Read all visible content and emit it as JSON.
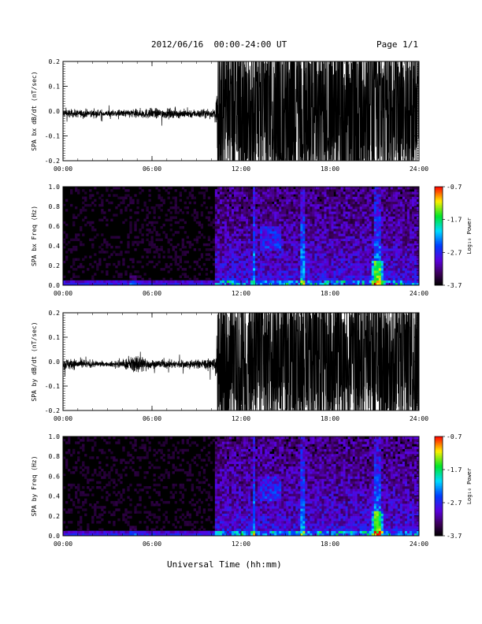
{
  "header": {
    "title": "2012/06/16  00:00-24:00 UT",
    "page": "Page 1/1"
  },
  "footer": {
    "xlabel": "Universal Time (hh:mm)"
  },
  "colorbar": {
    "ticks": [
      "-0.7",
      "-1.7",
      "-2.7",
      "-3.7"
    ],
    "label": "Log₁₀ Power"
  },
  "chart_data": [
    {
      "type": "line",
      "ylabel": "SPA bx dB/dt (nT/sec)",
      "xlabel": "",
      "xlim": [
        0,
        24
      ],
      "ylim": [
        -0.2,
        0.2
      ],
      "xticks": [
        "00:00",
        "06:00",
        "12:00",
        "18:00",
        "24:00"
      ],
      "yticks": [
        "0.2",
        "0.1",
        "0.0",
        "-0.1",
        "-0.2"
      ],
      "series": [
        {
          "color": "#000000",
          "x": [
            0,
            3,
            6,
            9,
            10.2,
            10.5,
            12,
            14,
            16,
            18,
            20,
            22,
            24
          ],
          "amplitude": [
            0.02,
            0.015,
            0.025,
            0.02,
            0.02,
            0.2,
            0.2,
            0.2,
            0.2,
            0.2,
            0.2,
            0.2,
            0.2
          ]
        }
      ]
    },
    {
      "type": "heatmap",
      "ylabel": "SPA bx Freq (Hz)",
      "xlim": [
        0,
        24
      ],
      "ylim": [
        0,
        1.0
      ],
      "xticks": [
        "00:00",
        "06:00",
        "12:00",
        "18:00",
        "24:00"
      ],
      "yticks": [
        "1.0",
        "0.8",
        "0.6",
        "0.4",
        "0.2",
        "0.0"
      ],
      "zlim": [
        -3.7,
        -0.7
      ]
    },
    {
      "type": "line",
      "ylabel": "SPA by dB/dt (nT/sec)",
      "xlabel": "",
      "xlim": [
        0,
        24
      ],
      "ylim": [
        -0.2,
        0.2
      ],
      "xticks": [
        "00:00",
        "06:00",
        "12:00",
        "18:00",
        "24:00"
      ],
      "yticks": [
        "0.2",
        "0.1",
        "0.0",
        "-0.1",
        "-0.2"
      ],
      "series": [
        {
          "color": "#000000",
          "x": [
            0,
            3,
            4.5,
            5,
            6,
            9,
            10.2,
            10.5,
            12,
            14,
            16,
            18,
            20,
            22,
            24
          ],
          "amplitude": [
            0.03,
            0.01,
            0.03,
            0.05,
            0.02,
            0.02,
            0.03,
            0.2,
            0.2,
            0.2,
            0.2,
            0.2,
            0.2,
            0.2,
            0.2
          ]
        }
      ]
    },
    {
      "type": "heatmap",
      "ylabel": "SPA by Freq (Hz)",
      "xlim": [
        0,
        24
      ],
      "ylim": [
        0,
        1.0
      ],
      "xticks": [
        "00:00",
        "06:00",
        "12:00",
        "18:00",
        "24:00"
      ],
      "yticks": [
        "1.0",
        "0.8",
        "0.6",
        "0.4",
        "0.2",
        "0.0"
      ],
      "zlim": [
        -3.7,
        -0.7
      ]
    }
  ]
}
